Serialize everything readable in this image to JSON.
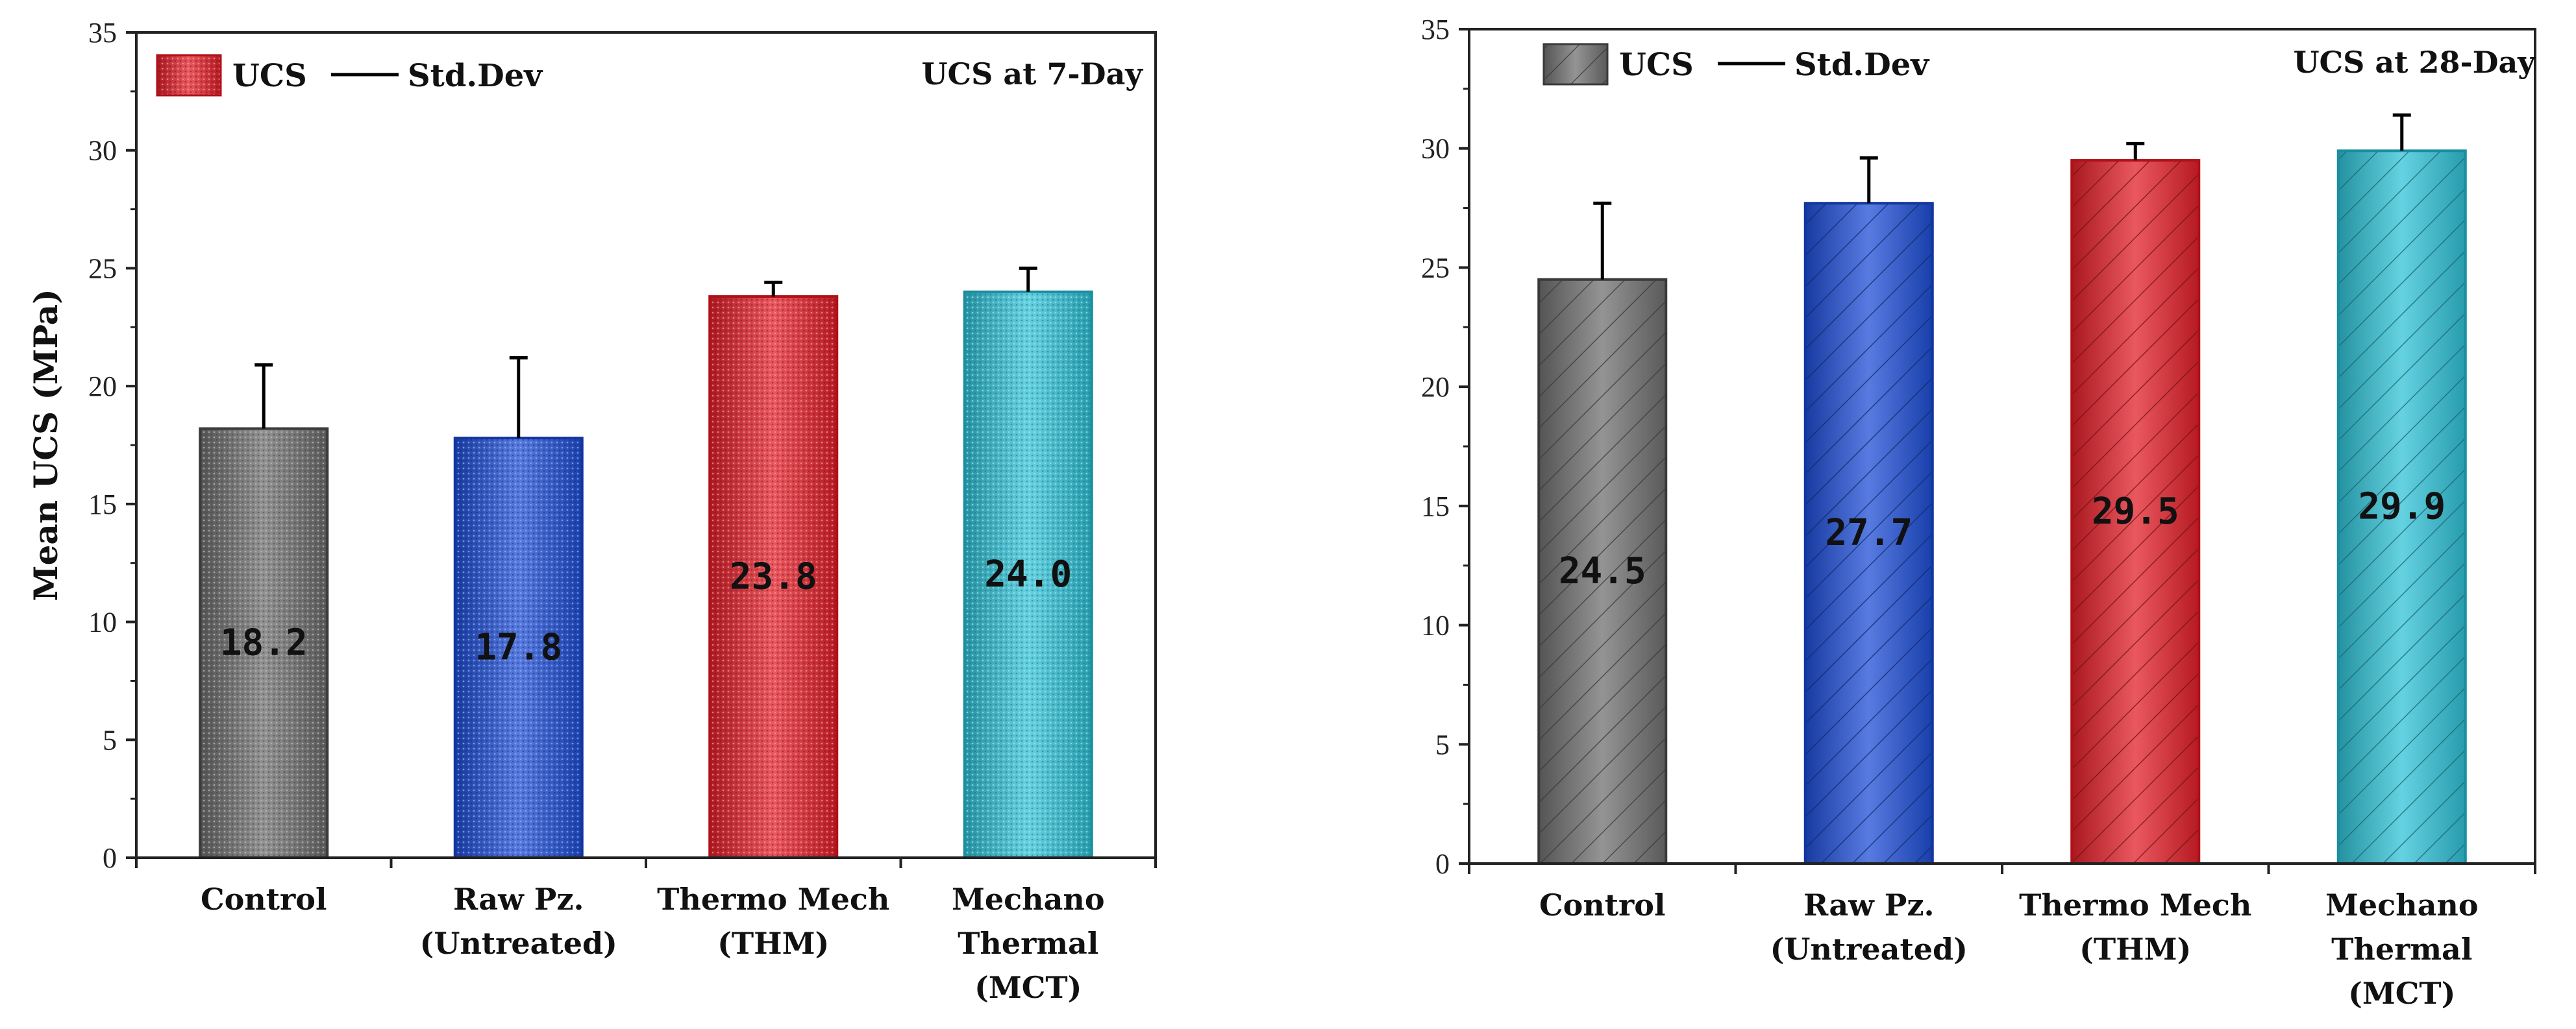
{
  "chart_data": [
    {
      "type": "bar",
      "title": "UCS at 7-Day",
      "ylabel": "Mean UCS (MPa)",
      "xlabel": "",
      "ylim": [
        0,
        35
      ],
      "yticks": [
        0,
        5,
        10,
        15,
        20,
        25,
        30,
        35
      ],
      "categories": [
        [
          "Control"
        ],
        [
          "Raw Pz.",
          "(Untreated)"
        ],
        [
          "Thermo Mech",
          "(THM)"
        ],
        [
          "Mechano",
          "Thermal",
          "(MCT)"
        ]
      ],
      "legend": {
        "placement": "top-left",
        "bar_label": "UCS",
        "line_label": "Std.Dev"
      },
      "series": [
        {
          "values": [
            18.2,
            17.8,
            23.8,
            24.0
          ],
          "std_dev": [
            2.7,
            3.4,
            0.6,
            1.0
          ],
          "labels": [
            "18.2",
            "17.8",
            "23.8",
            "24.0"
          ]
        }
      ],
      "colors": [
        "#6e6e6e",
        "#1f4fd6",
        "#e3202a",
        "#31c3d8"
      ],
      "edge_colors": [
        "#3a3a3a",
        "#1235a0",
        "#b01018",
        "#1a8ea0"
      ],
      "pattern": "dots",
      "grid": false
    },
    {
      "type": "bar",
      "title": "UCS at 28-Day",
      "ylabel": "",
      "xlabel": "",
      "ylim": [
        0,
        35
      ],
      "yticks": [
        0,
        5,
        10,
        15,
        20,
        25,
        30,
        35
      ],
      "categories": [
        [
          "Control"
        ],
        [
          "Raw Pz.",
          "(Untreated)"
        ],
        [
          "Thermo Mech",
          "(THM)"
        ],
        [
          "Mechano",
          "Thermal",
          "(MCT)"
        ]
      ],
      "legend": {
        "placement": "top-left",
        "bar_label": "UCS",
        "line_label": "Std.Dev"
      },
      "series": [
        {
          "values": [
            24.5,
            27.7,
            29.5,
            29.9
          ],
          "std_dev": [
            3.2,
            1.9,
            0.7,
            1.5
          ],
          "labels": [
            "24.5",
            "27.7",
            "29.5",
            "29.9"
          ]
        }
      ],
      "colors": [
        "#707070",
        "#1f4fd6",
        "#e3202a",
        "#31c3d8"
      ],
      "edge_colors": [
        "#3a3a3a",
        "#1235a0",
        "#b01018",
        "#1a8ea0"
      ],
      "pattern": "diagonal",
      "grid": false
    }
  ]
}
